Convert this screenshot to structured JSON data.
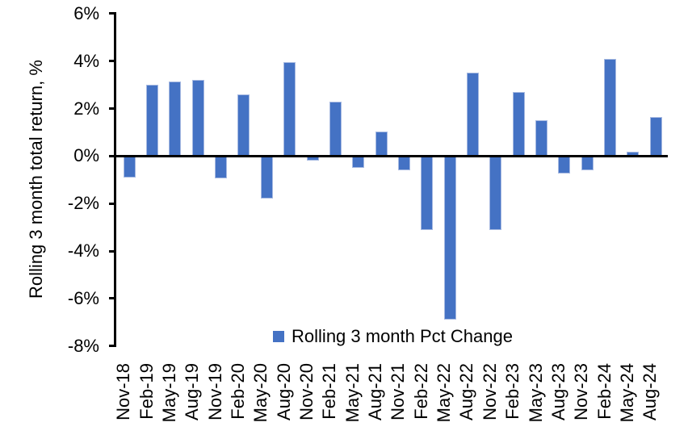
{
  "chart_data": {
    "type": "bar",
    "title": "",
    "xlabel": "",
    "ylabel": "Rolling 3 month total return, %",
    "ylim": [
      -8,
      6
    ],
    "ytick_values": [
      6,
      4,
      2,
      0,
      -2,
      -4,
      -6,
      -8
    ],
    "ytick_labels": [
      "6%",
      "4%",
      "2%",
      "0%",
      "-2%",
      "-4%",
      "-6%",
      "-8%"
    ],
    "grid": false,
    "legend": {
      "label": "Rolling 3 month Pct Change",
      "position": "bottom-center"
    },
    "colors": {
      "bar_fill": "#4472C4",
      "bar_border": "#A6B9E1",
      "axis": "#000000",
      "text": "#000000",
      "background": "#FFFFFF"
    },
    "categories": [
      "Nov-18",
      "Feb-19",
      "May-19",
      "Aug-19",
      "Nov-19",
      "Feb-20",
      "May-20",
      "Aug-20",
      "Nov-20",
      "Feb-21",
      "May-21",
      "Aug-21",
      "Nov-21",
      "Feb-22",
      "May-22",
      "Aug-22",
      "Nov-22",
      "Feb-23",
      "May-23",
      "Aug-23",
      "Nov-23",
      "Feb-24",
      "May-24",
      "Aug-24"
    ],
    "values": [
      -0.9,
      3.0,
      3.15,
      3.2,
      -0.95,
      2.6,
      -1.8,
      3.95,
      -0.2,
      2.3,
      -0.5,
      1.05,
      -0.6,
      -3.1,
      -6.9,
      3.5,
      -3.1,
      2.7,
      1.5,
      -0.75,
      -0.6,
      4.1,
      0.2,
      1.65
    ]
  }
}
